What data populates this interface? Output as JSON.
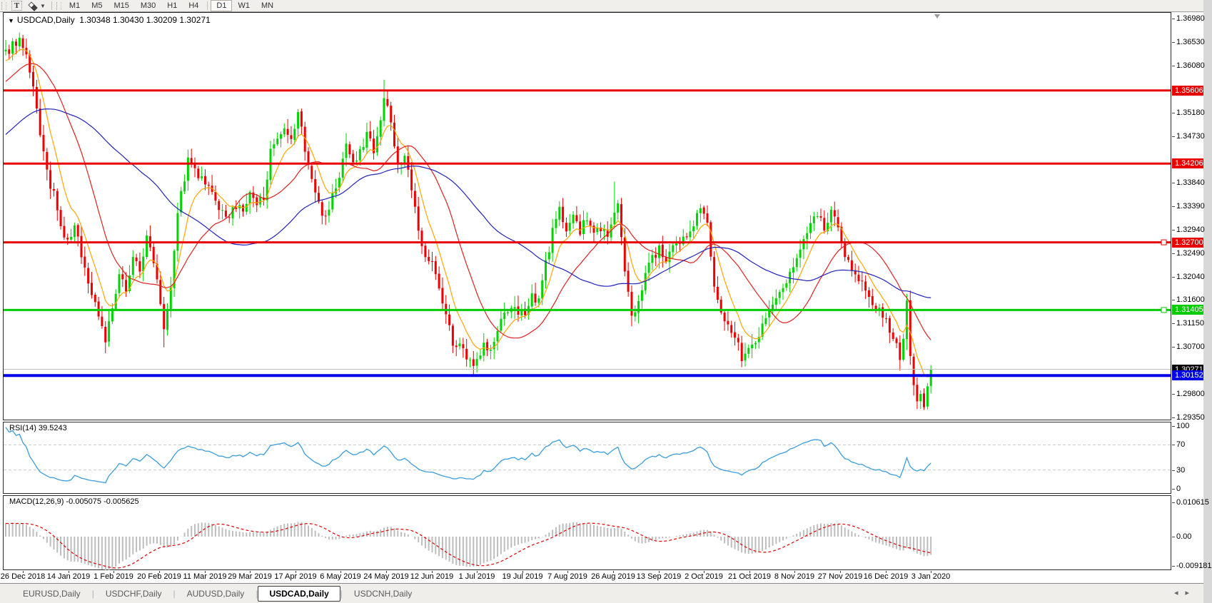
{
  "toolbar": {
    "text_tool": "T",
    "timeframes": [
      "M1",
      "M5",
      "M15",
      "M30",
      "H1",
      "H4",
      "D1",
      "W1",
      "MN"
    ],
    "active_timeframe": "D1"
  },
  "chart": {
    "collapse_marker": "▼",
    "symbol_title": "USDCAD,Daily",
    "ohlc_text": "1.30348 1.30430 1.30209 1.30271"
  },
  "indicators": {
    "rsi": {
      "label": "RSI(14)",
      "value": "39.5243"
    },
    "macd": {
      "label": "MACD(12,26,9)",
      "values": "-0.005075 -0.005625"
    }
  },
  "tabs": {
    "items": [
      {
        "label": "EURUSD,Daily",
        "active": false
      },
      {
        "label": "USDCHF,Daily",
        "active": false
      },
      {
        "label": "AUDUSD,Daily",
        "active": false
      },
      {
        "label": "USDCAD,Daily",
        "active": true
      },
      {
        "label": "USDCNH,Daily",
        "active": false
      }
    ],
    "scroll_left": "◂",
    "scroll_right": "▸"
  },
  "chart_data": {
    "type": "candlestick",
    "symbol": "USDCAD",
    "timeframe": "Daily",
    "bars": 270,
    "y_axis": {
      "min": 1.2935,
      "max": 1.3698,
      "ticks": [
        "1.36980",
        "1.36530",
        "1.36080",
        "1.35180",
        "1.34730",
        "1.33840",
        "1.33390",
        "1.32940",
        "1.32490",
        "1.32040",
        "1.31600",
        "1.31150",
        "1.30700",
        "1.29800",
        "1.29350"
      ]
    },
    "x_axis_labels": [
      "26 Dec 2018",
      "14 Jan 2019",
      "1 Feb 2019",
      "20 Feb 2019",
      "11 Mar 2019",
      "29 Mar 2019",
      "17 Apr 2019",
      "6 May 2019",
      "24 May 2019",
      "12 Jun 2019",
      "1 Jul 2019",
      "19 Jul 2019",
      "7 Aug 2019",
      "26 Aug 2019",
      "13 Sep 2019",
      "2 Oct 2019",
      "21 Oct 2019",
      "8 Nov 2019",
      "27 Nov 2019",
      "16 Dec 2019",
      "3 Jan 2020"
    ],
    "close_anchors": [
      [
        0,
        1.363
      ],
      [
        2,
        1.365
      ],
      [
        4,
        1.3658
      ],
      [
        6,
        1.362
      ],
      [
        8,
        1.356
      ],
      [
        10,
        1.348
      ],
      [
        12,
        1.34
      ],
      [
        14,
        1.336
      ],
      [
        16,
        1.3295
      ],
      [
        18,
        1.327
      ],
      [
        20,
        1.3298
      ],
      [
        22,
        1.325
      ],
      [
        24,
        1.319
      ],
      [
        26,
        1.3155
      ],
      [
        28,
        1.311
      ],
      [
        29,
        1.3085
      ],
      [
        31,
        1.314
      ],
      [
        33,
        1.32
      ],
      [
        35,
        1.3185
      ],
      [
        37,
        1.324
      ],
      [
        39,
        1.322
      ],
      [
        41,
        1.3275
      ],
      [
        43,
        1.324
      ],
      [
        45,
        1.316
      ],
      [
        46,
        1.311
      ],
      [
        48,
        1.319
      ],
      [
        50,
        1.333
      ],
      [
        53,
        1.3425
      ],
      [
        56,
        1.3395
      ],
      [
        58,
        1.338
      ],
      [
        61,
        1.335
      ],
      [
        64,
        1.331
      ],
      [
        66,
        1.334
      ],
      [
        69,
        1.333
      ],
      [
        71,
        1.336
      ],
      [
        73,
        1.334
      ],
      [
        75,
        1.336
      ],
      [
        77,
        1.344
      ],
      [
        79,
        1.346
      ],
      [
        81,
        1.348
      ],
      [
        83,
        1.346
      ],
      [
        85,
        1.352
      ],
      [
        87,
        1.345
      ],
      [
        89,
        1.339
      ],
      [
        91,
        1.334
      ],
      [
        93,
        1.332
      ],
      [
        95,
        1.336
      ],
      [
        97,
        1.339
      ],
      [
        99,
        1.3465
      ],
      [
        101,
        1.342
      ],
      [
        103,
        1.344
      ],
      [
        105,
        1.348
      ],
      [
        107,
        1.345
      ],
      [
        109,
        1.351
      ],
      [
        110,
        1.3545
      ],
      [
        112,
        1.35
      ],
      [
        114,
        1.342
      ],
      [
        116,
        1.343
      ],
      [
        118,
        1.337
      ],
      [
        120,
        1.329
      ],
      [
        122,
        1.325
      ],
      [
        124,
        1.323
      ],
      [
        126,
        1.318
      ],
      [
        128,
        1.313
      ],
      [
        130,
        1.308
      ],
      [
        133,
        1.306
      ],
      [
        135,
        1.304
      ],
      [
        137,
        1.3045
      ],
      [
        139,
        1.3075
      ],
      [
        141,
        1.306
      ],
      [
        143,
        1.31
      ],
      [
        145,
        1.313
      ],
      [
        147,
        1.315
      ],
      [
        149,
        1.3125
      ],
      [
        151,
        1.314
      ],
      [
        153,
        1.317
      ],
      [
        155,
        1.3155
      ],
      [
        157,
        1.323
      ],
      [
        159,
        1.329
      ],
      [
        161,
        1.333
      ],
      [
        163,
        1.33
      ],
      [
        165,
        1.332
      ],
      [
        167,
        1.329
      ],
      [
        169,
        1.3315
      ],
      [
        171,
        1.3285
      ],
      [
        173,
        1.33
      ],
      [
        175,
        1.328
      ],
      [
        177,
        1.333
      ],
      [
        178,
        1.334
      ],
      [
        180,
        1.321
      ],
      [
        182,
        1.3125
      ],
      [
        184,
        1.316
      ],
      [
        186,
        1.3215
      ],
      [
        188,
        1.324
      ],
      [
        190,
        1.326
      ],
      [
        192,
        1.323
      ],
      [
        194,
        1.3255
      ],
      [
        196,
        1.327
      ],
      [
        198,
        1.328
      ],
      [
        200,
        1.331
      ],
      [
        202,
        1.334
      ],
      [
        204,
        1.33
      ],
      [
        206,
        1.318
      ],
      [
        208,
        1.314
      ],
      [
        210,
        1.311
      ],
      [
        212,
        1.309
      ],
      [
        214,
        1.305
      ],
      [
        216,
        1.307
      ],
      [
        218,
        1.3085
      ],
      [
        220,
        1.311
      ],
      [
        222,
        1.314
      ],
      [
        224,
        1.316
      ],
      [
        226,
        1.318
      ],
      [
        228,
        1.3215
      ],
      [
        230,
        1.324
      ],
      [
        232,
        1.327
      ],
      [
        234,
        1.33
      ],
      [
        236,
        1.332
      ],
      [
        238,
        1.33
      ],
      [
        240,
        1.3325
      ],
      [
        242,
        1.33
      ],
      [
        244,
        1.325
      ],
      [
        246,
        1.321
      ],
      [
        248,
        1.3205
      ],
      [
        250,
        1.3185
      ],
      [
        252,
        1.315
      ],
      [
        254,
        1.3135
      ],
      [
        256,
        1.3125
      ],
      [
        257,
        1.3105
      ],
      [
        258,
        1.309
      ],
      [
        259,
        1.3075
      ],
      [
        260,
        1.305
      ],
      [
        261,
        1.309
      ],
      [
        262,
        1.315
      ],
      [
        263,
        1.305
      ],
      [
        264,
        1.299
      ],
      [
        265,
        1.2965
      ],
      [
        266,
        1.2975
      ],
      [
        267,
        1.2955
      ],
      [
        268,
        1.2995
      ],
      [
        269,
        1.3027
      ]
    ],
    "wick_spikes": [
      {
        "bar": 110,
        "high": 1.3581
      },
      {
        "bar": 177,
        "high": 1.3386
      },
      {
        "bar": 46,
        "low": 1.3069
      },
      {
        "bar": 265,
        "low": 1.2951
      }
    ],
    "candle_colors": {
      "up": "#00d400",
      "down": "#ec0000"
    },
    "moving_averages": [
      {
        "name": "ma-fast",
        "type": "ema",
        "period": 8,
        "color": "#ffa500"
      },
      {
        "name": "ma-mid",
        "type": "sma",
        "period": 21,
        "color": "#dd2020"
      },
      {
        "name": "ma-slow",
        "type": "sma",
        "period": 55,
        "color": "#2222bb"
      }
    ],
    "horizontal_lines": [
      {
        "price": 1.35606,
        "label": "1.35606",
        "color": "#e80000",
        "width": 3,
        "handle": false
      },
      {
        "price": 1.34206,
        "label": "1.34206",
        "color": "#e80000",
        "width": 3,
        "handle": false
      },
      {
        "price": 1.327,
        "label": "1.32700",
        "color": "#e80000",
        "width": 3,
        "handle": true
      },
      {
        "price": 1.31405,
        "label": "1.31405",
        "color": "#00cc00",
        "width": 3,
        "handle": true
      },
      {
        "price": 1.30152,
        "label": "1.30152",
        "color": "#0000e8",
        "width": 4,
        "handle": false
      }
    ],
    "bid_line": {
      "price": 1.30271,
      "label": "1.30271",
      "line_color": "#bdbdbd",
      "tag_color": "#000000"
    },
    "rsi": {
      "period": 14,
      "color": "#3a9ddb",
      "levels": [
        70,
        30
      ],
      "scale_ticks": [
        {
          "label": "100",
          "value": 100
        },
        {
          "label": "70",
          "value": 70
        },
        {
          "label": "30",
          "value": 30
        },
        {
          "label": "0",
          "value": 0
        }
      ]
    },
    "macd": {
      "fast": 12,
      "slow": 26,
      "signal": 9,
      "histogram_color": "#bdbdbd",
      "signal_color": "#e00000",
      "scale_ticks": [
        {
          "label": "0.010615",
          "value": 0.010615
        },
        {
          "label": "0.00",
          "value": 0
        },
        {
          "label": "-0.009181",
          "value": -0.009181
        }
      ]
    },
    "shift_marker_color": "#9a9a9a"
  }
}
